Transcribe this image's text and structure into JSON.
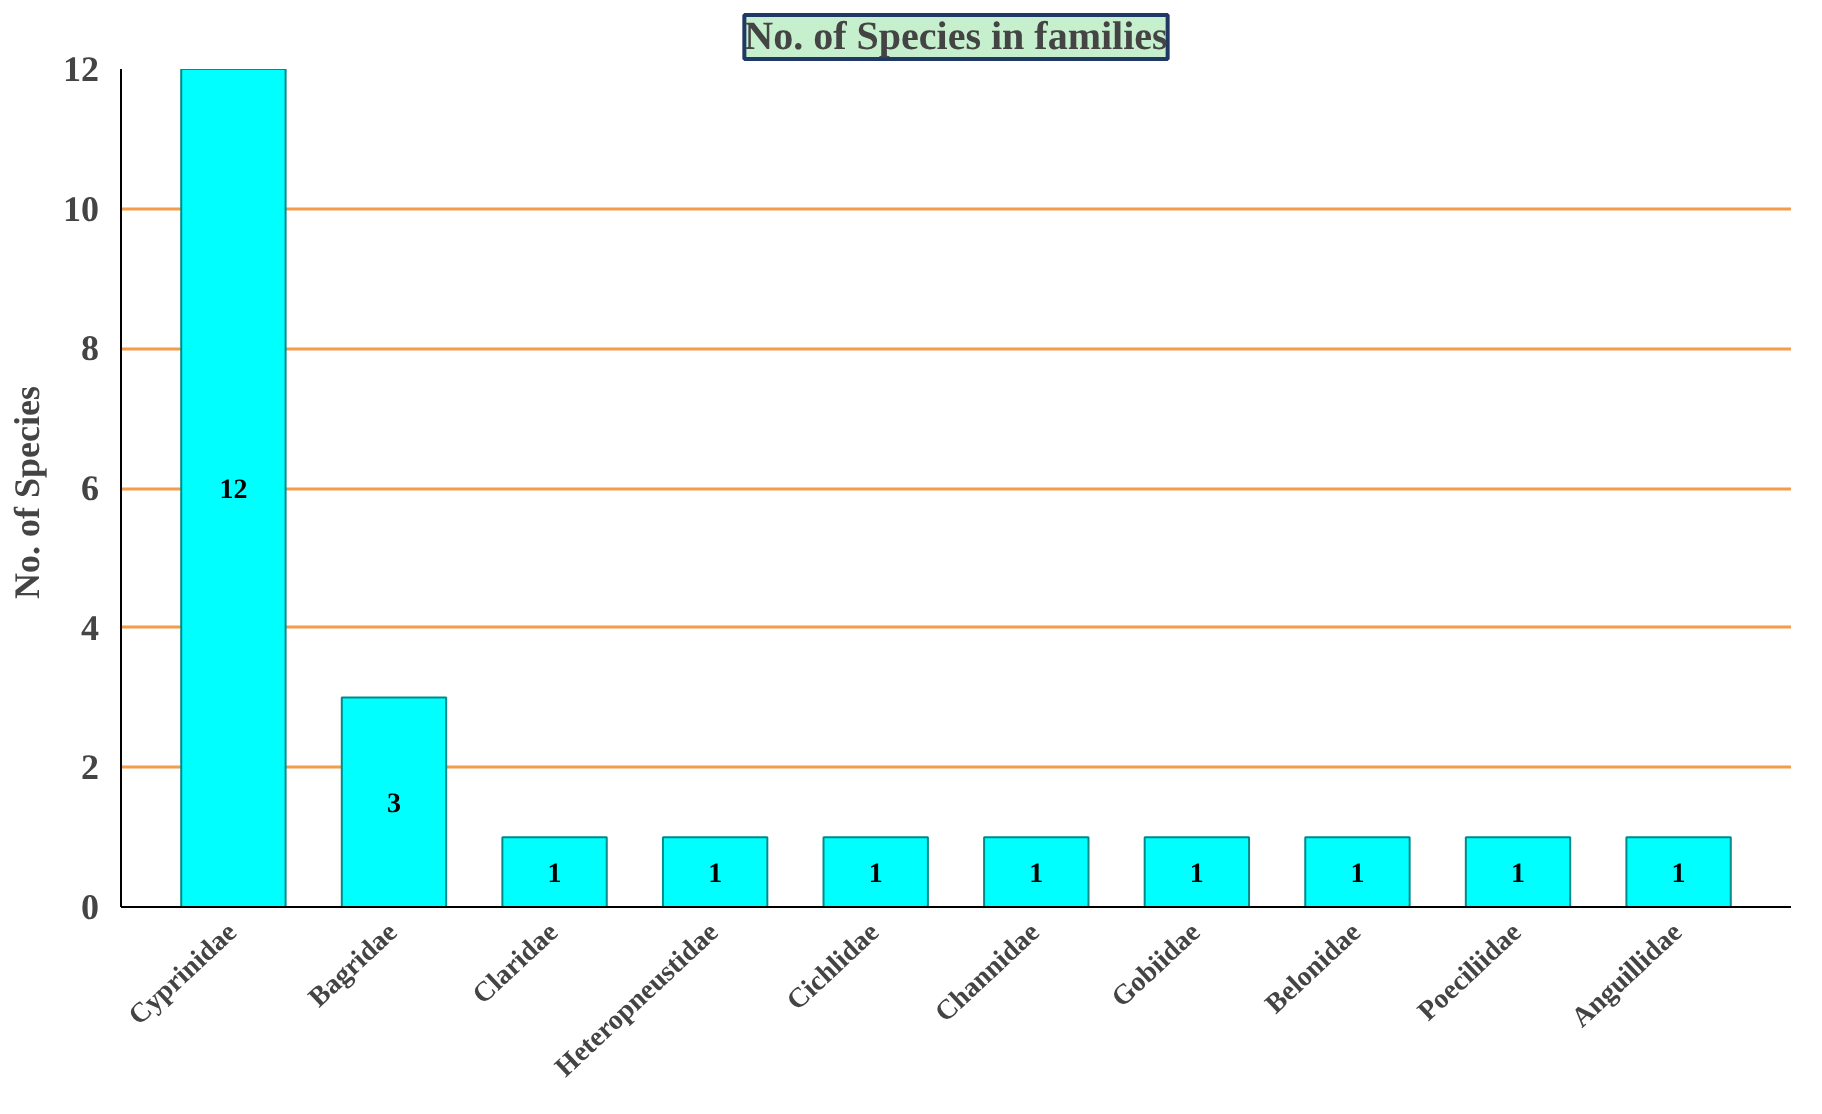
{
  "chart_data": {
    "type": "bar",
    "title": "No. of Species in families",
    "ylabel": "No.  of Species",
    "categories": [
      "Cyprinidae",
      "Bagridae",
      "Claridae",
      "Heteropneustidae",
      "Cichlidae",
      "Channidae",
      "Gobiidae",
      "Belonidae",
      "Poeciliidae",
      "Anguillidae"
    ],
    "values": [
      12,
      3,
      1,
      1,
      1,
      1,
      1,
      1,
      1,
      1
    ],
    "color": "#00ffff",
    "ylim": [
      0,
      12
    ],
    "yticks": [
      0,
      2,
      4,
      6,
      8,
      10,
      12
    ],
    "grid": "y",
    "data_labels": true
  }
}
